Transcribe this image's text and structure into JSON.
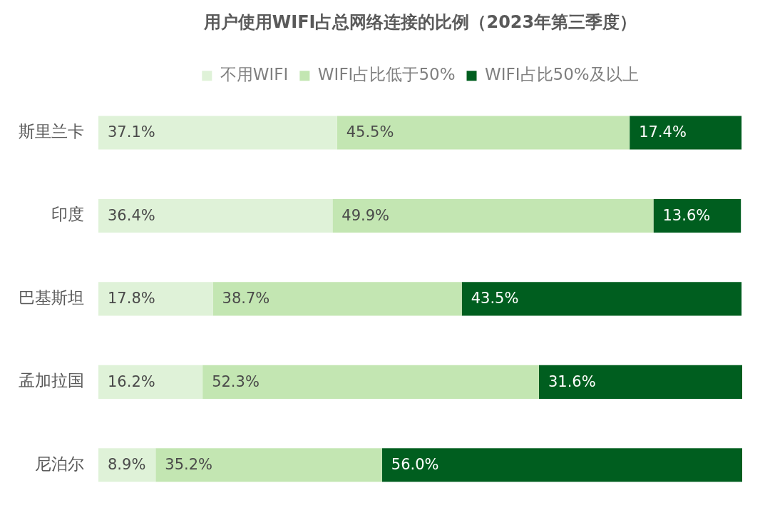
{
  "chart_data": {
    "type": "bar",
    "orientation": "horizontal",
    "stacked": true,
    "title": "用户使用WIFI占总网络连接的比例（2023年第三季度）",
    "categories": [
      "斯里兰卡",
      "印度",
      "巴基斯坦",
      "孟加拉国",
      "尼泊尔"
    ],
    "series": [
      {
        "name": "不用WIFI",
        "color": "#dff2d8",
        "values": [
          37.1,
          36.4,
          17.8,
          16.2,
          8.9
        ],
        "value_labels": [
          "37.1%",
          "36.4%",
          "17.8%",
          "16.2%",
          "8.9%"
        ]
      },
      {
        "name": "WIFI占比低于50%",
        "color": "#c3e6b2",
        "values": [
          45.5,
          49.9,
          38.7,
          52.3,
          35.2
        ],
        "value_labels": [
          "45.5%",
          "49.9%",
          "38.7%",
          "52.3%",
          "35.2%"
        ]
      },
      {
        "name": "WIFI占比50%及以上",
        "color": "#005e1f",
        "values": [
          17.4,
          13.6,
          43.5,
          31.6,
          56.0
        ],
        "value_labels": [
          "17.4%",
          "13.6%",
          "43.5%",
          "31.6%",
          "56.0%"
        ]
      }
    ],
    "legend": "top",
    "tick_labels": "y"
  }
}
